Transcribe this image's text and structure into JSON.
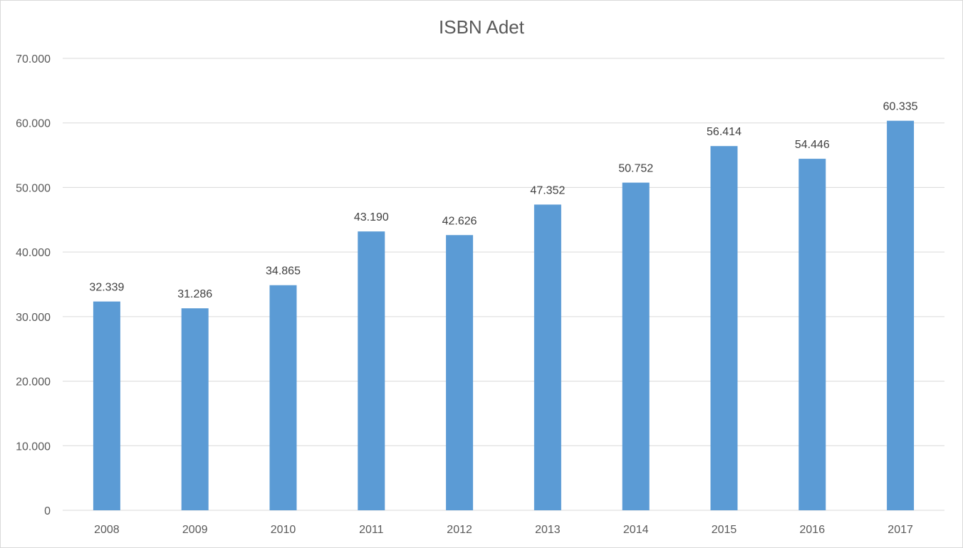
{
  "chart_data": {
    "type": "bar",
    "title": "ISBN Adet",
    "xlabel": "",
    "ylabel": "",
    "categories": [
      "2008",
      "2009",
      "2010",
      "2011",
      "2012",
      "2013",
      "2014",
      "2015",
      "2016",
      "2017"
    ],
    "series": [
      {
        "values": [
          32339,
          31286,
          34865,
          43190,
          42626,
          47352,
          50752,
          56414,
          54446,
          60335
        ],
        "labels": [
          "32.339",
          "31.286",
          "34.865",
          "43.190",
          "42.626",
          "47.352",
          "50.752",
          "56.414",
          "54.446",
          "60.335"
        ],
        "color": "#5b9bd5"
      }
    ],
    "ylim": [
      0,
      70000
    ],
    "yticks": [
      0,
      10000,
      20000,
      30000,
      40000,
      50000,
      60000,
      70000
    ],
    "ytick_labels": [
      "0",
      "10.000",
      "20.000",
      "30.000",
      "40.000",
      "50.000",
      "60.000",
      "70.000"
    ],
    "grid": true,
    "legend": "none",
    "colors": {
      "bar": "#5b9bd5",
      "grid": "#d9d9d9",
      "text": "#595959"
    }
  }
}
